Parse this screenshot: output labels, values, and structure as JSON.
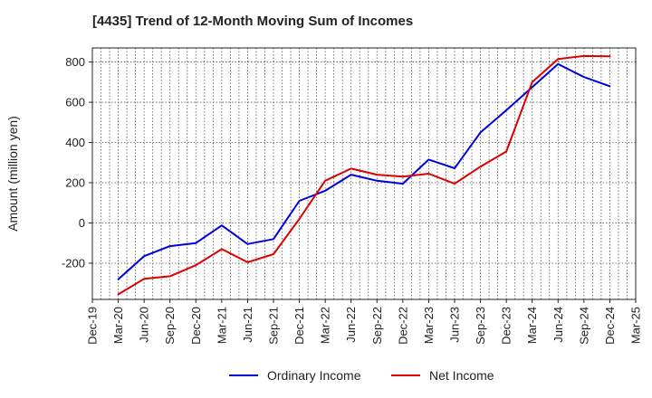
{
  "chart_data": {
    "type": "line",
    "title": "[4435]  Trend of 12-Month Moving Sum of Incomes",
    "xlabel": "",
    "ylabel": "Amount (million yen)",
    "ylim": [
      -380,
      870
    ],
    "yticks": [
      -200,
      0,
      200,
      400,
      600,
      800
    ],
    "ytick_labels": [
      "-200",
      "0",
      "200",
      "400",
      "600",
      "800"
    ],
    "grid": true,
    "legend_position": "bottom",
    "x_tick_labels": [
      "Dec-19",
      "Mar-20",
      "Jun-20",
      "Sep-20",
      "Dec-20",
      "Mar-21",
      "Jun-21",
      "Sep-21",
      "Dec-21",
      "Mar-22",
      "Jun-22",
      "Sep-22",
      "Dec-22",
      "Mar-23",
      "Jun-23",
      "Sep-23",
      "Dec-23",
      "Mar-24",
      "Jun-24",
      "Sep-24",
      "Dec-24",
      "Mar-25"
    ],
    "x": [
      "Mar-20",
      "Jun-20",
      "Sep-20",
      "Dec-20",
      "Mar-21",
      "Jun-21",
      "Sep-21",
      "Dec-21",
      "Mar-22",
      "Jun-22",
      "Sep-22",
      "Dec-22",
      "Mar-23",
      "Jun-23",
      "Sep-23",
      "Dec-23",
      "Mar-24",
      "Jun-24",
      "Sep-24",
      "Dec-24"
    ],
    "series": [
      {
        "name": "Ordinary Income",
        "color": "#0000dd",
        "values": [
          -280,
          -165,
          -115,
          -100,
          -12,
          -105,
          -80,
          110,
          160,
          240,
          210,
          195,
          315,
          272,
          450,
          560,
          675,
          790,
          725,
          680
        ]
      },
      {
        "name": "Net Income",
        "color": "#dd0000",
        "values": [
          -355,
          -278,
          -265,
          -210,
          -130,
          -195,
          -155,
          20,
          210,
          270,
          240,
          230,
          245,
          195,
          280,
          355,
          700,
          815,
          830,
          828
        ]
      }
    ]
  }
}
